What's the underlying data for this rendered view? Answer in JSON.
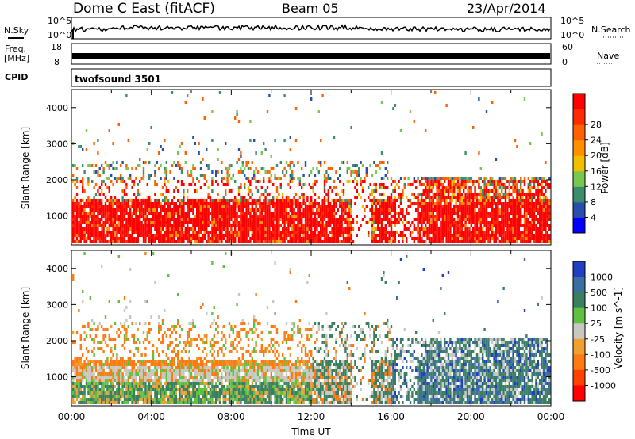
{
  "header": {
    "title": "Dome C East (fitACF)",
    "beam": "Beam 05",
    "date": "23/Apr/2014"
  },
  "top_panels": {
    "nsky_label": "N.Sky",
    "nsky_ticks": [
      "10^5",
      "10^0"
    ],
    "nsearch_label": "N.Search",
    "nsearch_ticks": [
      "10^5",
      "10^0"
    ],
    "freq_label_line1": "Freq.",
    "freq_label_line2": "[MHz]",
    "freq_ticks": [
      "18",
      "8"
    ],
    "nave_label": "Nave",
    "nave_ticks": [
      "60",
      "0"
    ],
    "cpid_label": "CPID",
    "cpid_value": "twofsound 3501"
  },
  "colors": {
    "power_scale": [
      "#0000ff",
      "#2a4fa8",
      "#3c8c6e",
      "#78c850",
      "#f0c000",
      "#ff9000",
      "#ff6000",
      "#ff2a00",
      "#ff0000"
    ],
    "velocity_scale": [
      "#2040c0",
      "#3a6fa0",
      "#3a8060",
      "#60c040",
      "#c8c8c0",
      "#f0a030",
      "#ff7a10",
      "#ff4000",
      "#ff0000"
    ]
  },
  "chart_data": [
    {
      "type": "heatmap",
      "quantity": "Power",
      "ylabel": "Slant Range [km]",
      "yticks": [
        "1000",
        "2000",
        "3000",
        "4000"
      ],
      "ylim": [
        200,
        4500
      ],
      "xlim_hours": [
        0,
        24
      ],
      "colorbar_label": "Power [dB]",
      "colorbar_ticks": [
        "4",
        "8",
        "12",
        "16",
        "20",
        "24",
        "28"
      ],
      "colorbar_range": [
        0,
        30
      ]
    },
    {
      "type": "heatmap",
      "quantity": "Velocity",
      "xlabel": "Time UT",
      "xticks": [
        "00:00",
        "04:00",
        "08:00",
        "12:00",
        "16:00",
        "20:00",
        "00:00"
      ],
      "ylabel": "Slant Range [km]",
      "yticks": [
        "1000",
        "2000",
        "3000",
        "4000"
      ],
      "ylim": [
        200,
        4500
      ],
      "xlim_hours": [
        0,
        24
      ],
      "colorbar_label": "Velocity [m s^-1]",
      "colorbar_ticks": [
        "1000",
        "500",
        "100",
        "25",
        "-25",
        "-100",
        "-500",
        "-1000"
      ]
    }
  ]
}
